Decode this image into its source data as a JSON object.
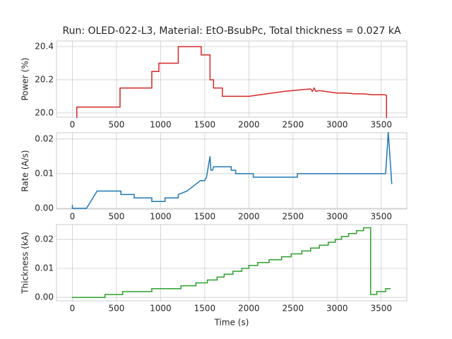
{
  "chart_data": [
    {
      "type": "line",
      "title": "Run: OLED-022-L3, Material: EtO-BsubPc, Total thickness = 0.027 kA",
      "ylabel": "Power (%)",
      "color": "#d62728",
      "grid": true,
      "x": [
        50,
        50,
        540,
        540,
        900,
        900,
        980,
        980,
        1200,
        1200,
        1460,
        1460,
        1560,
        1560,
        1600,
        1600,
        1700,
        1700,
        2000,
        2200,
        2400,
        2600,
        2700,
        2720,
        2740,
        2760,
        2800,
        3000,
        3100,
        3200,
        3300,
        3400,
        3540,
        3560,
        3560
      ],
      "values": [
        19.97,
        20.035,
        20.035,
        20.15,
        20.15,
        20.25,
        20.25,
        20.3,
        20.3,
        20.4,
        20.4,
        20.35,
        20.35,
        20.2,
        20.2,
        20.15,
        20.15,
        20.1,
        20.1,
        20.115,
        20.13,
        20.14,
        20.145,
        20.13,
        20.15,
        20.13,
        20.135,
        20.12,
        20.12,
        20.115,
        20.115,
        20.11,
        20.11,
        20.105,
        19.97
      ],
      "xlim": [
        -180,
        3790
      ],
      "xticks": [
        0,
        500,
        1000,
        1500,
        2000,
        2500,
        3000,
        3500
      ],
      "ylim": [
        19.974,
        20.434
      ],
      "yticks": [
        {
          "value": 20,
          "label": "20.0"
        },
        20.2,
        20.4
      ]
    },
    {
      "type": "line",
      "ylabel": "Rate (A/s)",
      "color": "#1f77b4",
      "grid": true,
      "x": [
        0,
        0,
        10,
        160,
        280,
        550,
        550,
        700,
        700,
        900,
        900,
        1050,
        1050,
        1200,
        1200,
        1300,
        1350,
        1400,
        1450,
        1500,
        1520,
        1560,
        1570,
        1590,
        1600,
        1800,
        1800,
        1850,
        1850,
        2050,
        2050,
        2550,
        2550,
        3550,
        3580,
        3620
      ],
      "values": [
        0.001,
        0,
        0,
        0,
        0.005,
        0.005,
        0.004,
        0.004,
        0.003,
        0.003,
        0.002,
        0.002,
        0.003,
        0.003,
        0.004,
        0.005,
        0.006,
        0.007,
        0.008,
        0.008,
        0.009,
        0.015,
        0.011,
        0.011,
        0.012,
        0.012,
        0.011,
        0.011,
        0.01,
        0.01,
        0.009,
        0.009,
        0.01,
        0.01,
        0.022,
        0.007
      ],
      "xlim": [
        -180,
        3790
      ],
      "xticks": [
        0,
        500,
        1000,
        1500,
        2000,
        2500,
        3000,
        3500
      ],
      "ylim": [
        -0.0002,
        0.0218
      ],
      "yticks": [
        {
          "value": 0,
          "label": "0.00"
        },
        0.01,
        0.02
      ]
    },
    {
      "type": "step",
      "ylabel": "Thickness (kA)",
      "xlabel": "Time (s)",
      "color": "#2ca02c",
      "grid": true,
      "x": [
        0,
        370,
        570,
        900,
        1230,
        1400,
        1530,
        1640,
        1720,
        1820,
        1920,
        2000,
        2100,
        2230,
        2370,
        2480,
        2600,
        2700,
        2800,
        2900,
        2980,
        3050,
        3130,
        3220,
        3300,
        3380,
        3450,
        3550,
        3600
      ],
      "values": [
        0,
        0.001,
        0.002,
        0.003,
        0.004,
        0.005,
        0.006,
        0.007,
        0.008,
        0.009,
        0.01,
        0.011,
        0.012,
        0.013,
        0.014,
        0.015,
        0.016,
        0.017,
        0.018,
        0.019,
        0.02,
        0.021,
        0.022,
        0.023,
        0.024,
        0.001,
        0.002,
        0.003,
        0.003
      ],
      "xlim": [
        -180,
        3790
      ],
      "xticks": [
        0,
        500,
        1000,
        1500,
        2000,
        2500,
        3000,
        3500
      ],
      "ylim": [
        -0.0012,
        0.0251
      ],
      "yticks": [
        {
          "value": 0,
          "label": "0.00"
        },
        0.01,
        0.02
      ]
    }
  ]
}
